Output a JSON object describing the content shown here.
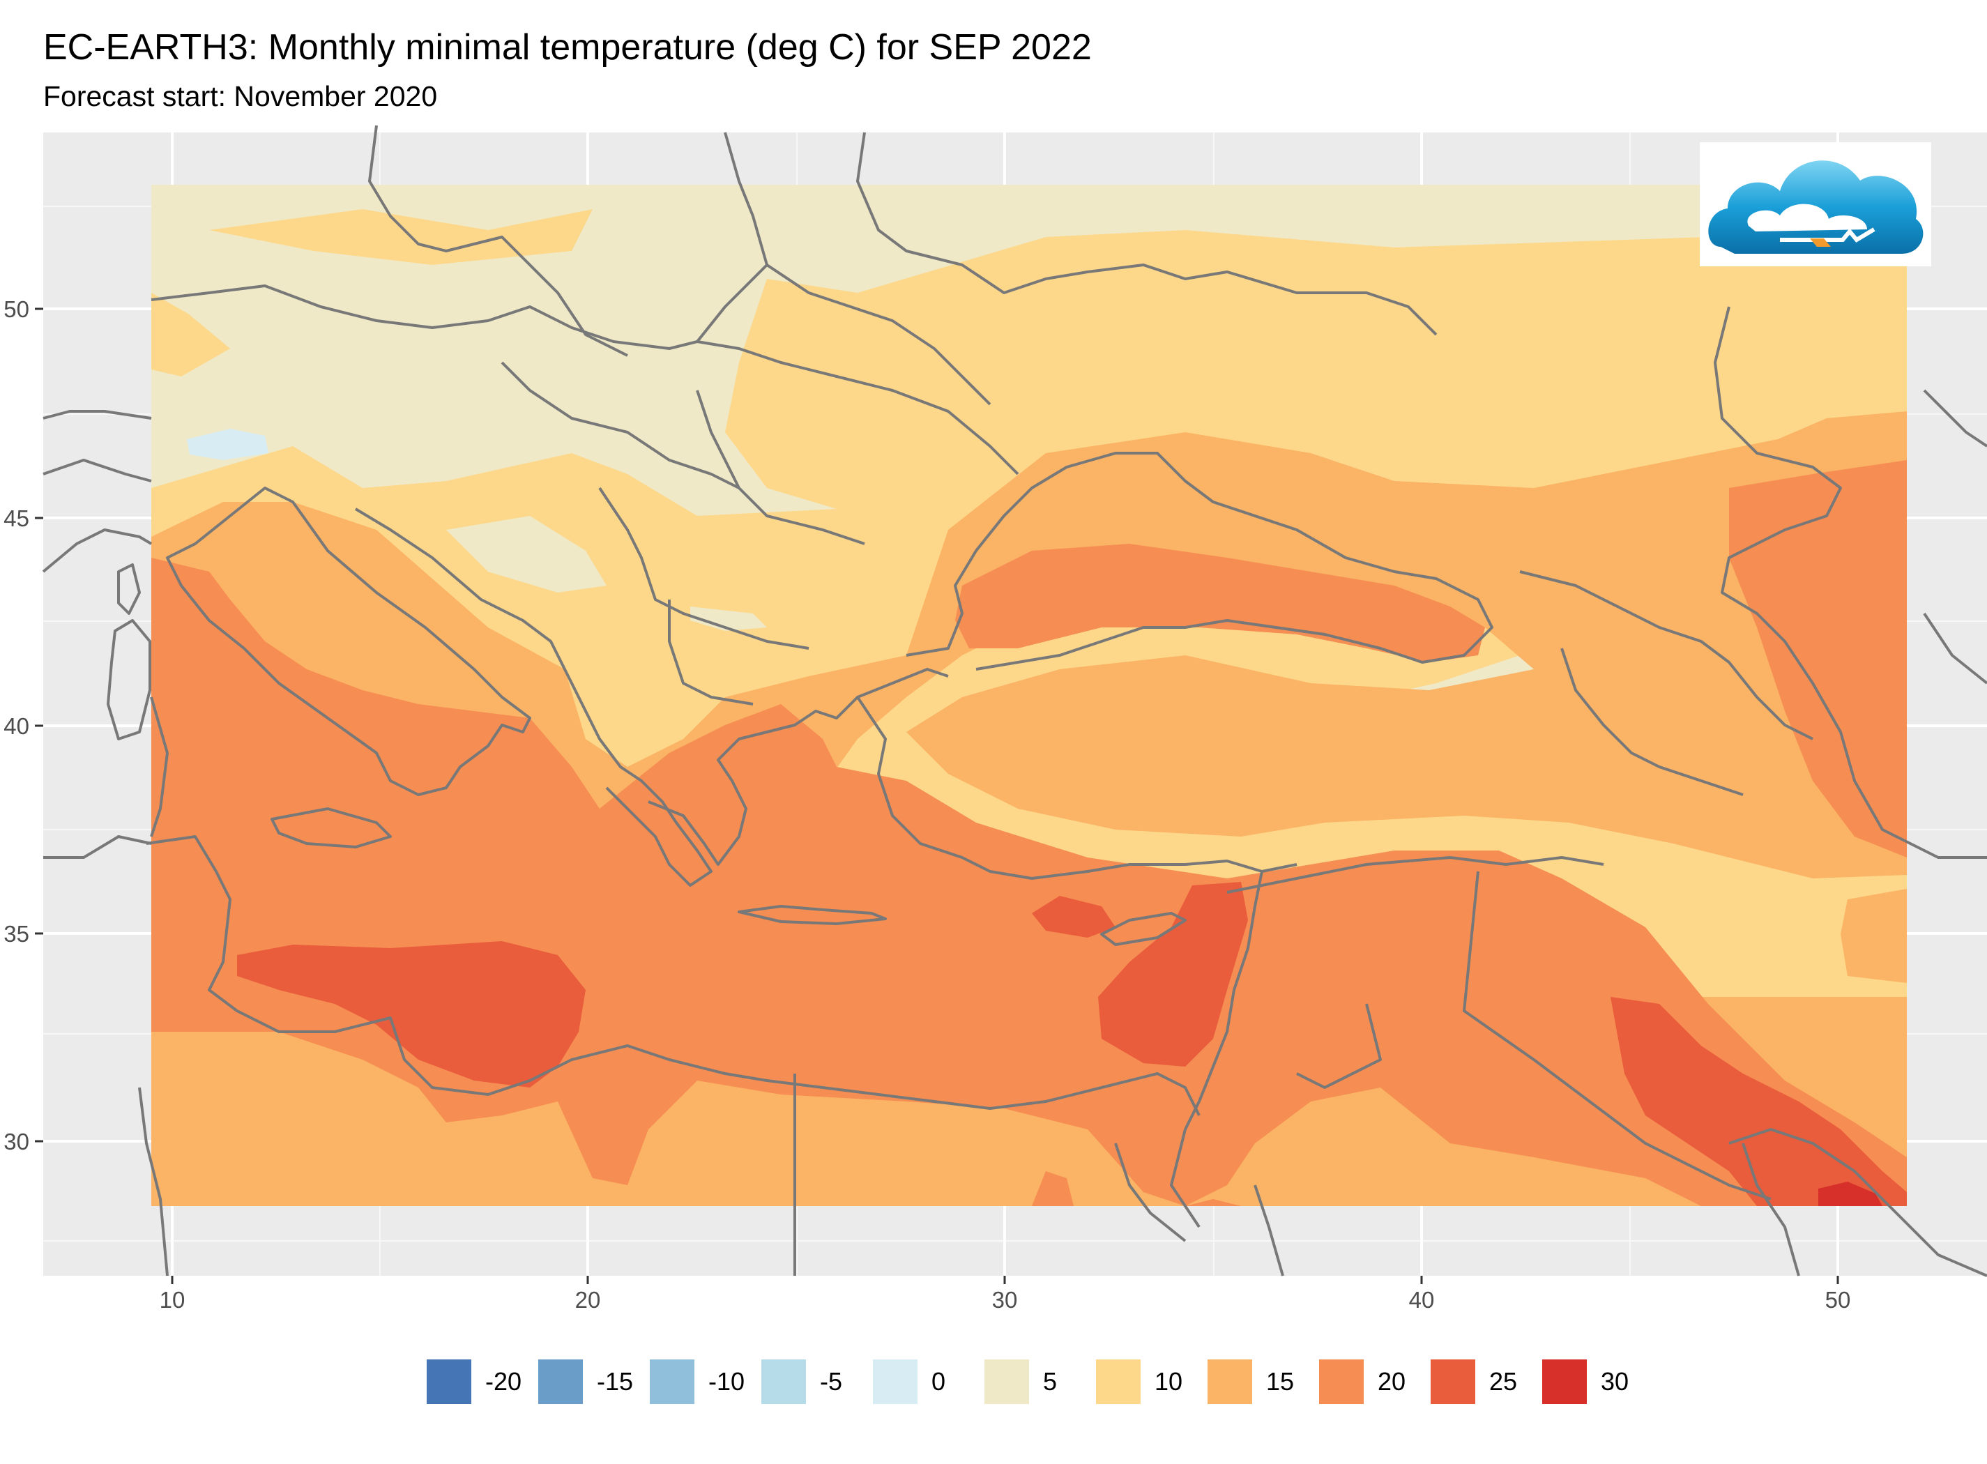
{
  "title": "EC-EARTH3: Monthly minimal temperature (deg C) for SEP 2022",
  "subtitle": "Forecast start: November 2020",
  "axes": {
    "y_ticks": [
      {
        "label": "50",
        "value": 50
      },
      {
        "label": "45",
        "value": 45
      },
      {
        "label": "40",
        "value": 40
      },
      {
        "label": "35",
        "value": 35
      },
      {
        "label": "30",
        "value": 30
      }
    ],
    "x_ticks": [
      {
        "label": "10",
        "value": 10
      },
      {
        "label": "20",
        "value": 20
      },
      {
        "label": "30",
        "value": 30
      },
      {
        "label": "40",
        "value": 40
      },
      {
        "label": "50",
        "value": 50
      }
    ]
  },
  "legend": [
    {
      "label": "-20",
      "color": "#4575b4"
    },
    {
      "label": "-15",
      "color": "#6b9dc9"
    },
    {
      "label": "-10",
      "color": "#8fbfdb"
    },
    {
      "label": "-5",
      "color": "#b6dbe9"
    },
    {
      "label": "0",
      "color": "#d8ecf3"
    },
    {
      "label": "5",
      "color": "#efe9c8"
    },
    {
      "label": "10",
      "color": "#fdd88a"
    },
    {
      "label": "15",
      "color": "#fbb365"
    },
    {
      "label": "20",
      "color": "#f68d52"
    },
    {
      "label": "25",
      "color": "#e95c3c"
    },
    {
      "label": "30",
      "color": "#d7302a"
    }
  ],
  "colors": {
    "panel_background": "#ebebeb",
    "grid_line": "#ffffff",
    "coastline": "#787878"
  },
  "logo_icon": "cloud-logo-icon"
}
